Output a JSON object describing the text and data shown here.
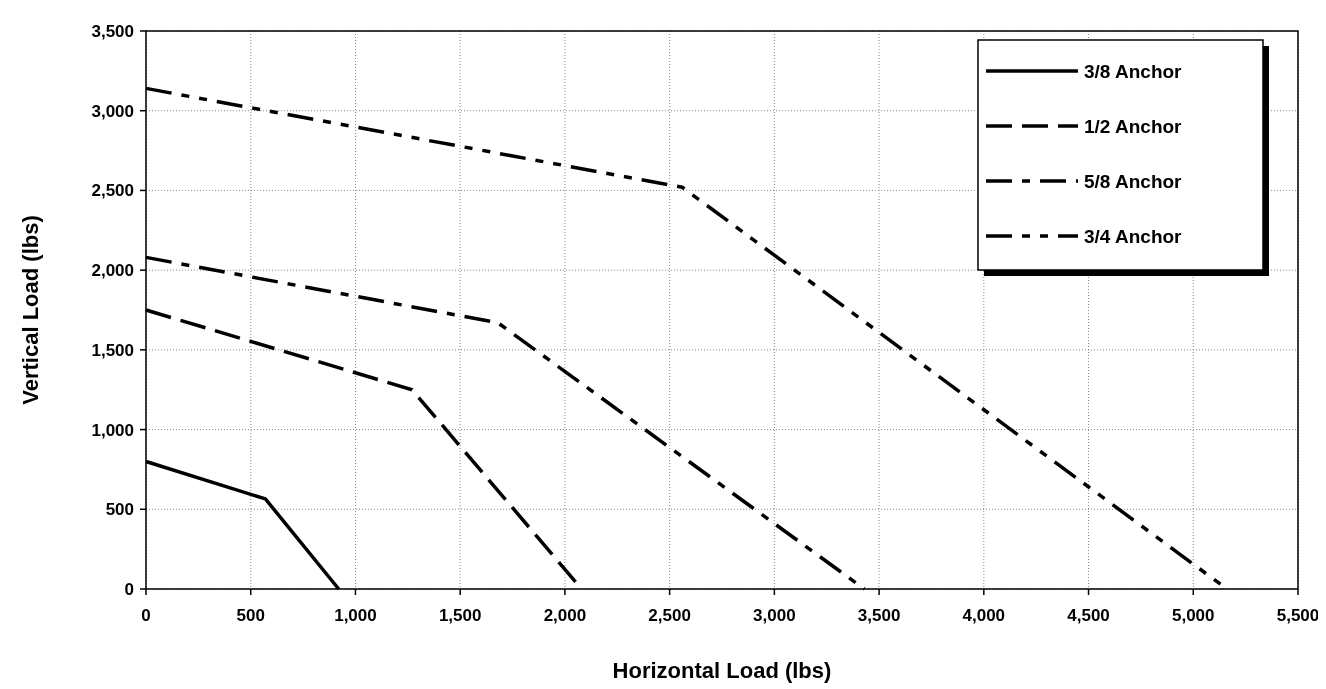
{
  "chart_data": {
    "type": "line",
    "xlabel": "Horizontal Load (lbs)",
    "ylabel": "Vertical Load (lbs)",
    "xlim": [
      0,
      5500
    ],
    "xticks": [
      0,
      {
        "value": 500,
        "label": "500"
      },
      {
        "value": 1000,
        "label": "1,000"
      },
      {
        "value": 1500,
        "label": "1,500"
      },
      {
        "value": 2000,
        "label": "2,000"
      },
      {
        "value": 2500,
        "label": "2,500"
      },
      {
        "value": 3000,
        "label": "3,000"
      },
      {
        "value": 3500,
        "label": "3,500"
      },
      {
        "value": 4000,
        "label": "4,000"
      },
      {
        "value": 4500,
        "label": "4,500"
      },
      {
        "value": 5000,
        "label": "5,000"
      },
      {
        "value": 5500,
        "label": "5,500"
      }
    ],
    "ylim": [
      0,
      3500
    ],
    "yticks": [
      0,
      500,
      {
        "value": 1000,
        "label": "1,000"
      },
      {
        "value": 1500,
        "label": "1,500"
      },
      {
        "value": 2000,
        "label": "2,000"
      },
      {
        "value": 2500,
        "label": "2,500"
      },
      {
        "value": 3000,
        "label": "3,000"
      },
      {
        "value": 3500,
        "label": "3,500"
      }
    ],
    "grid": true,
    "legend": "top right",
    "marker": "none",
    "series": [
      {
        "name": "3/8 Anchor",
        "color": "#000000",
        "line_style": "solid",
        "x": [
          0,
          570,
          920
        ],
        "values": [
          800,
          565,
          0
        ]
      },
      {
        "name": "1/2 Anchor",
        "color": "#000000",
        "line_style": "dashed",
        "x": [
          0,
          1270,
          2080
        ],
        "values": [
          1750,
          1250,
          0
        ]
      },
      {
        "name": "5/8 Anchor",
        "color": "#000000",
        "line_style": "dashed",
        "x": [
          0,
          1680,
          3430
        ],
        "values": [
          2080,
          1670,
          0
        ]
      },
      {
        "name": "3/4 Anchor",
        "color": "#000000",
        "line_style": "dashed",
        "x": [
          0,
          2560,
          5130
        ],
        "values": [
          3140,
          2520,
          30
        ]
      }
    ]
  }
}
